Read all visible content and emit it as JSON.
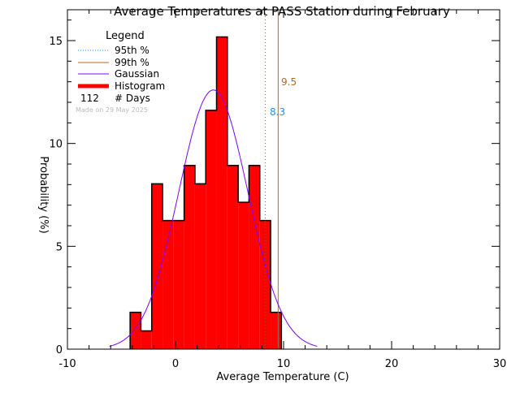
{
  "chart_data": {
    "type": "bar",
    "title": "Average Temperatures at PASS Station during February",
    "xlabel": "Average Temperature (C)",
    "ylabel": "Probability (%)",
    "xlim": [
      -10,
      30
    ],
    "ylim": [
      0,
      16.5
    ],
    "xticks": [
      -10,
      0,
      10,
      20,
      30
    ],
    "yticks": [
      0,
      5,
      10,
      15
    ],
    "bin_start": -4.2,
    "bin_width": 1.0,
    "values": [
      1.79,
      0.89,
      8.04,
      6.25,
      6.25,
      8.93,
      8.04,
      11.61,
      15.18,
      8.93,
      7.14,
      8.93,
      6.25,
      1.79
    ],
    "gaussian": {
      "mean": 3.5,
      "sigma": 3.2,
      "peak": 12.6
    },
    "p95": {
      "value": 8.3,
      "label": "8.3",
      "color": "#1e90ff"
    },
    "p99": {
      "value": 9.5,
      "label": "9.5",
      "color": "#b06a20"
    },
    "legend": {
      "title": "Legend",
      "items": [
        "95th %",
        "99th %",
        "Gaussian",
        "Histogram"
      ],
      "days_count": "112",
      "days_label": "# Days",
      "made_on": "Made on 29 May 2025"
    },
    "colors": {
      "histogram": "#ff0000",
      "gaussian": "#8000ff"
    }
  }
}
